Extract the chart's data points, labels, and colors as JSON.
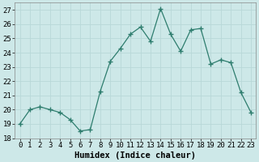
{
  "x": [
    0,
    1,
    2,
    3,
    4,
    5,
    6,
    7,
    8,
    9,
    10,
    11,
    12,
    13,
    14,
    15,
    16,
    17,
    18,
    19,
    20,
    21,
    22,
    23
  ],
  "y": [
    19,
    20,
    20.2,
    20,
    19.8,
    19.3,
    18.5,
    18.6,
    21.3,
    23.4,
    24.3,
    25.3,
    25.8,
    24.8,
    27.1,
    25.3,
    24.1,
    25.6,
    25.7,
    23.2,
    23.5,
    23.3,
    21.2,
    19.8
  ],
  "line_color": "#2e7d6e",
  "marker": "+",
  "marker_size": 4,
  "marker_linewidth": 1.0,
  "bg_color": "#cde8e8",
  "grid_color": "#b8d8d8",
  "xlabel": "Humidex (Indice chaleur)",
  "ylim": [
    18,
    27.5
  ],
  "yticks": [
    18,
    19,
    20,
    21,
    22,
    23,
    24,
    25,
    26,
    27
  ],
  "xlim": [
    -0.5,
    23.5
  ],
  "xticks": [
    0,
    1,
    2,
    3,
    4,
    5,
    6,
    7,
    8,
    9,
    10,
    11,
    12,
    13,
    14,
    15,
    16,
    17,
    18,
    19,
    20,
    21,
    22,
    23
  ],
  "label_fontsize": 7.5,
  "tick_fontsize": 6.5
}
